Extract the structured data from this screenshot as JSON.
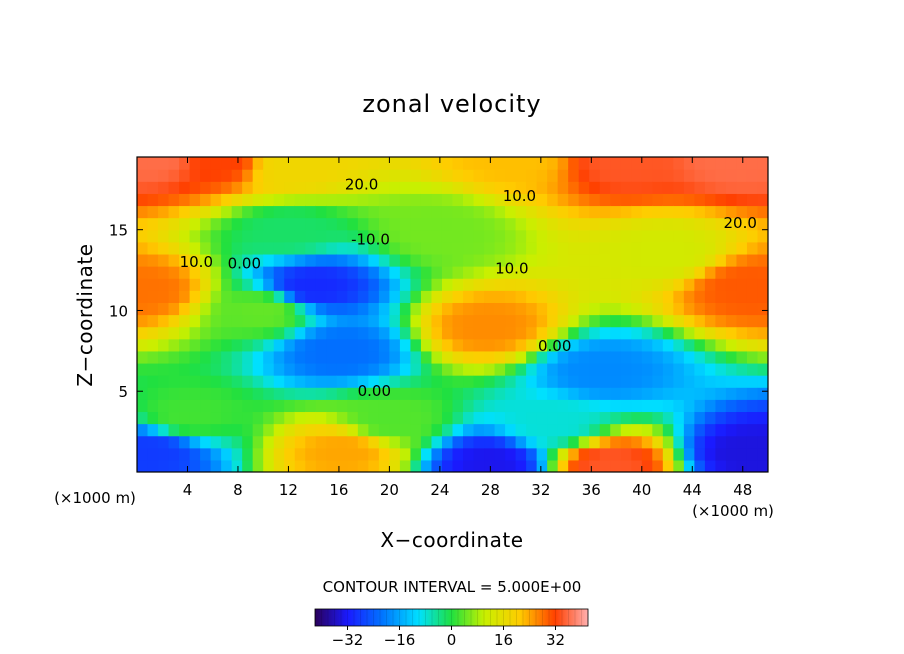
{
  "chart_data": {
    "type": "heatmap",
    "title": "zonal velocity",
    "xlabel": "X−coordinate",
    "ylabel": "Z−coordinate",
    "x_unit_left": "(×1000 m)",
    "x_unit_right": "(×1000 m)",
    "xlim": [
      0,
      50
    ],
    "ylim": [
      0,
      19.5
    ],
    "x_ticks": [
      4,
      8,
      12,
      16,
      20,
      24,
      28,
      32,
      36,
      40,
      44,
      48
    ],
    "y_ticks": [
      5,
      10,
      15
    ],
    "contour_interval_text": "CONTOUR INTERVAL = 5.000E+00",
    "contour_interval": 5,
    "colorbar": {
      "vmin": -42,
      "vmax": 42,
      "ticks": [
        -32,
        -16,
        0,
        16,
        32
      ]
    },
    "contour_labels": [
      {
        "text": "20.0",
        "x": 17.8,
        "z": 17.8
      },
      {
        "text": "10.0",
        "x": 30.3,
        "z": 17.1
      },
      {
        "text": "20.0",
        "x": 47.8,
        "z": 15.4
      },
      {
        "text": "10.0",
        "x": 4.7,
        "z": 13.0
      },
      {
        "text": "0.00",
        "x": 8.5,
        "z": 12.9
      },
      {
        "text": "-10.0",
        "x": 18.5,
        "z": 14.4
      },
      {
        "text": "10.0",
        "x": 29.7,
        "z": 12.6
      },
      {
        "text": "0.00",
        "x": 33.1,
        "z": 7.8
      },
      {
        "text": "0.00",
        "x": 18.8,
        "z": 5.0
      }
    ],
    "field_features": [
      {
        "x": 0.5,
        "z": 11.3,
        "value": 28
      },
      {
        "x": 48.2,
        "z": 11.5,
        "value": 30
      },
      {
        "x": 27.8,
        "z": 9.0,
        "value": 26
      },
      {
        "x": 14.0,
        "z": 11.5,
        "value": -30
      },
      {
        "x": 16.0,
        "z": 7.5,
        "value": -22
      },
      {
        "x": 36.8,
        "z": 6.3,
        "value": -19
      },
      {
        "x": 28.0,
        "z": 0.6,
        "value": -33
      },
      {
        "x": 48.5,
        "z": 1.2,
        "value": -34
      },
      {
        "x": 1.0,
        "z": 1.3,
        "value": -28
      },
      {
        "x": 16.5,
        "z": 1.3,
        "value": 24
      },
      {
        "x": 37.5,
        "z": 0.5,
        "value": 34
      },
      {
        "x": 6.5,
        "z": 19.2,
        "value": 32
      },
      {
        "x": 38.5,
        "z": 19.2,
        "value": 34
      },
      {
        "x": 30.0,
        "z": 19.4,
        "value": 22
      },
      {
        "x": 1.5,
        "z": 19.4,
        "value": 36
      },
      {
        "x": 47.5,
        "z": 19.4,
        "value": 36
      },
      {
        "x": 12.0,
        "z": 15.0,
        "value": -2
      },
      {
        "x": 10.0,
        "z": 10.0,
        "value": 4
      },
      {
        "x": 20.0,
        "z": 3.2,
        "value": 3
      },
      {
        "x": 4.0,
        "z": 3.5,
        "value": 2
      },
      {
        "x": 33.0,
        "z": 3.0,
        "value": -8
      },
      {
        "x": 24.0,
        "z": 15.0,
        "value": 5
      },
      {
        "x": 42.0,
        "z": 13.5,
        "value": 12
      },
      {
        "x": 12.0,
        "z": 18.8,
        "value": 18
      }
    ]
  }
}
